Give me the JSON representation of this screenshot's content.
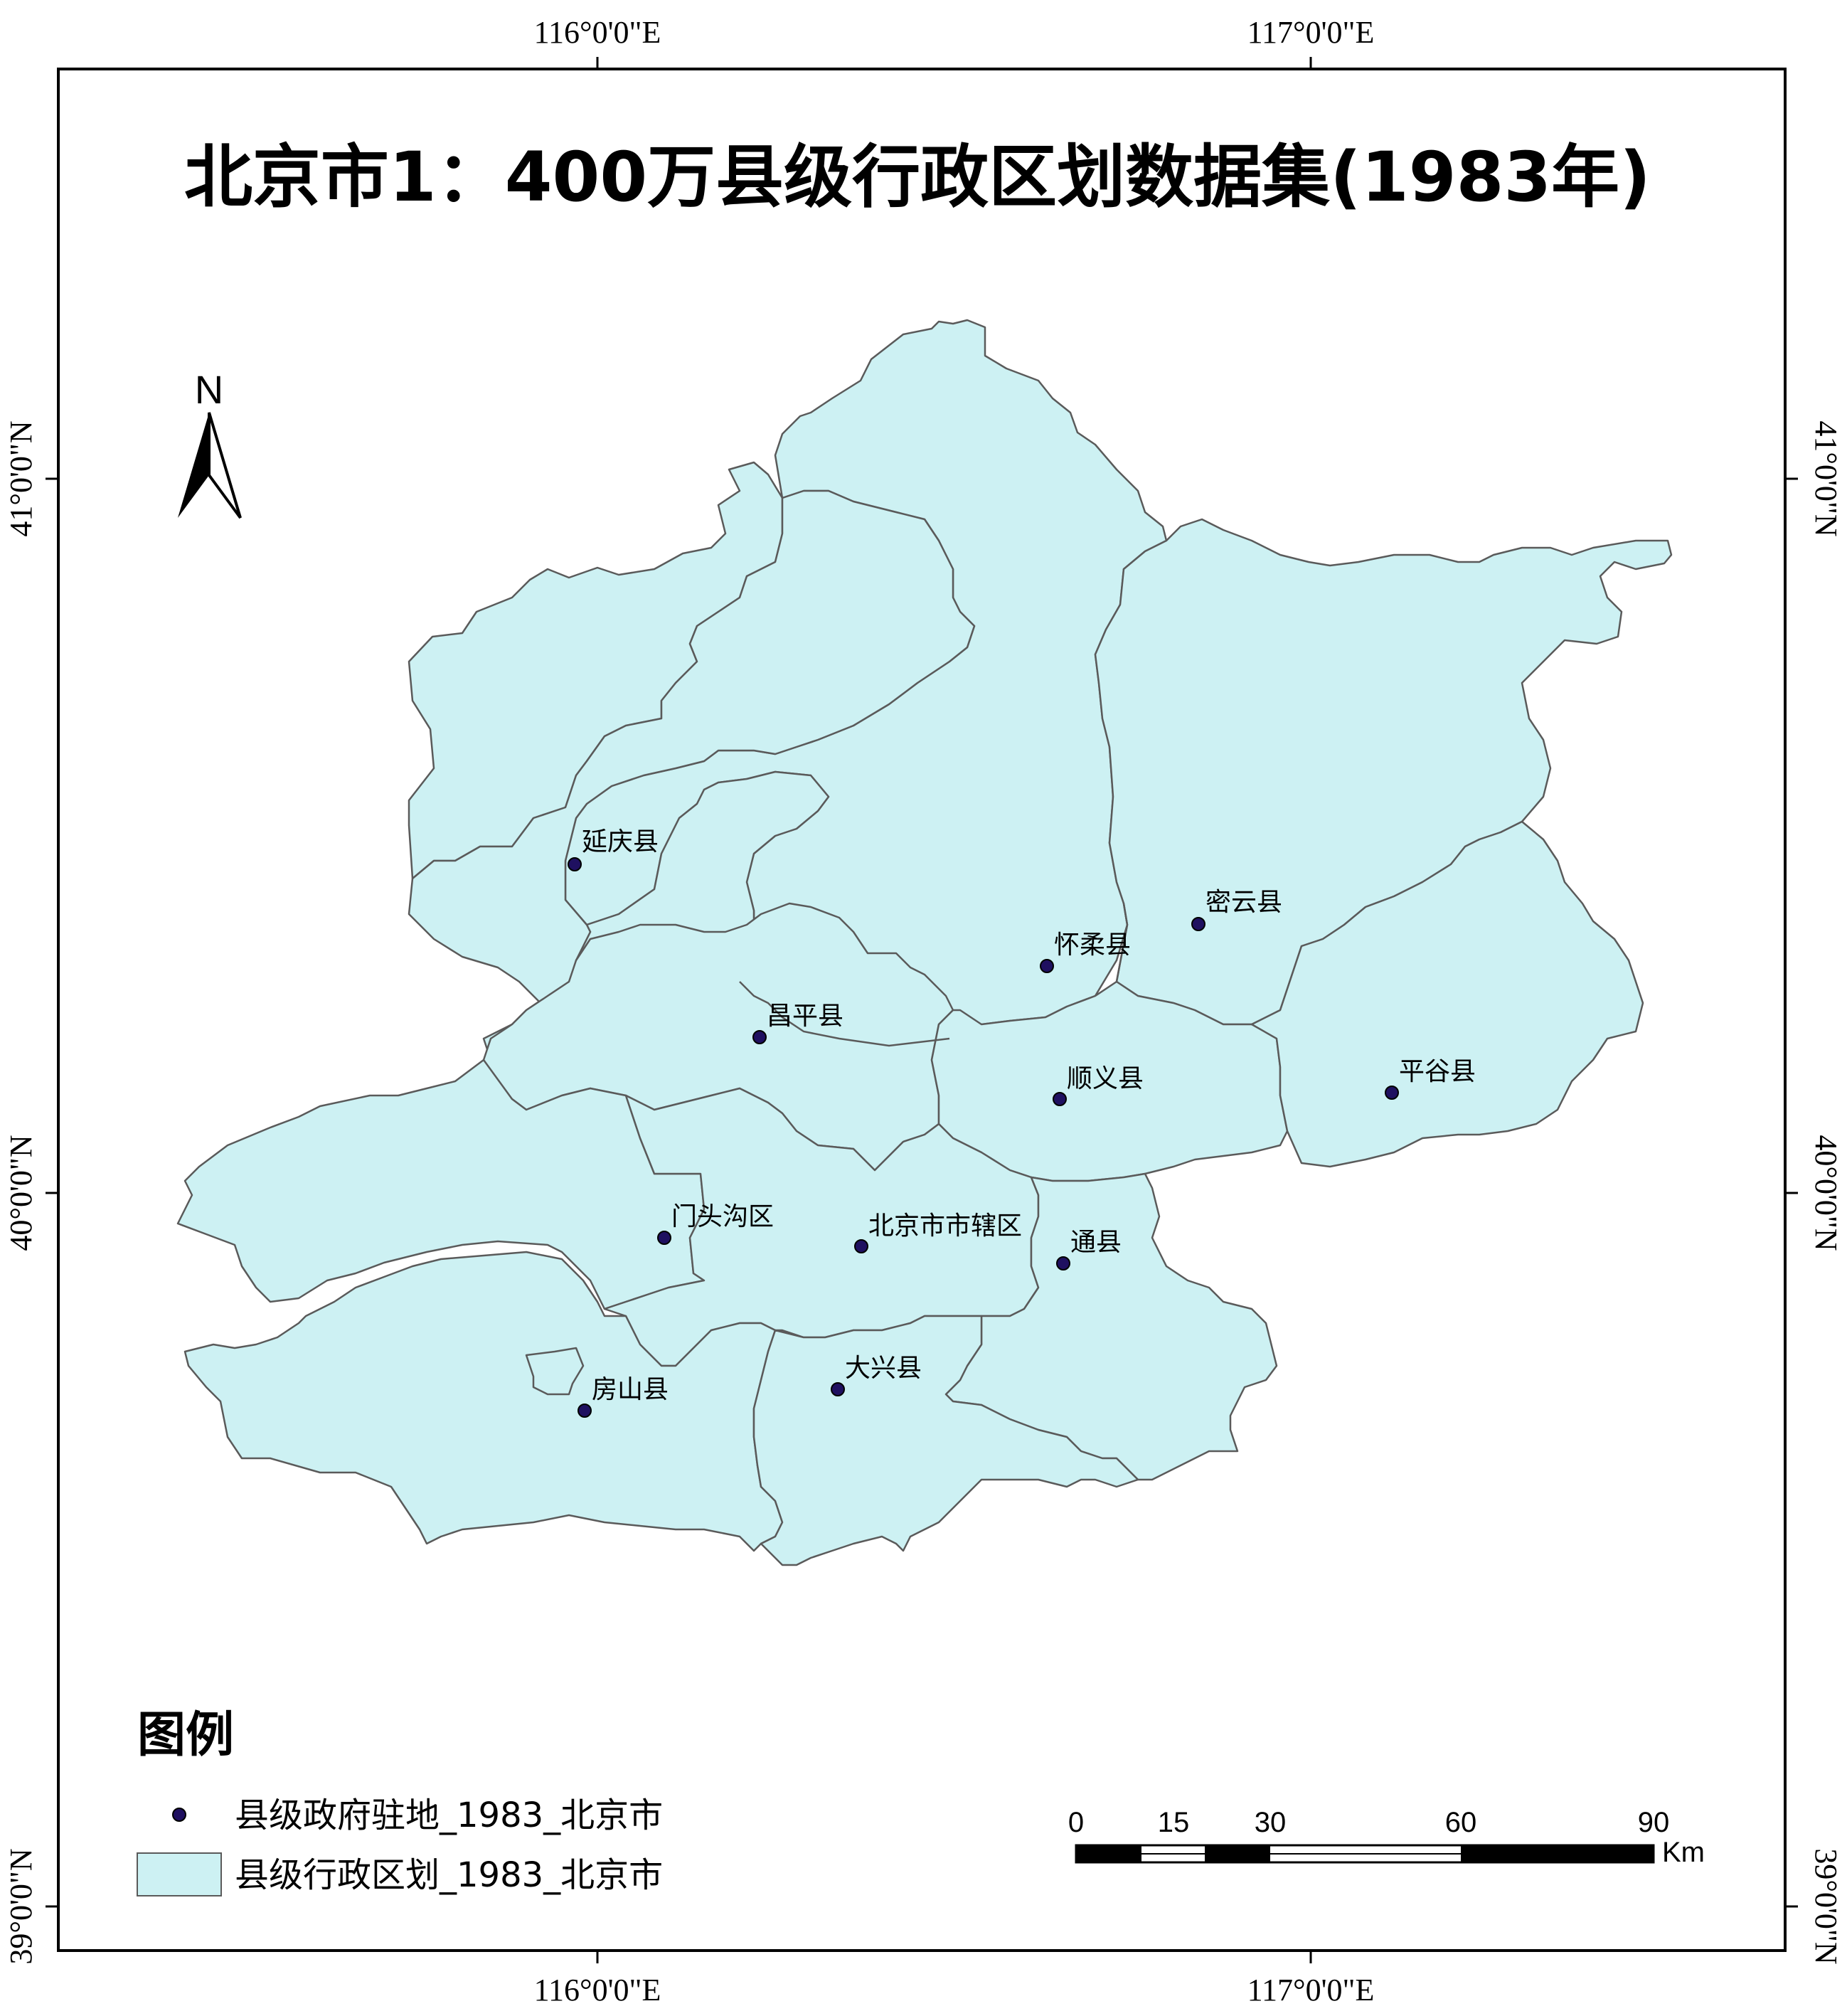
{
  "title": "北京市1：400万县级行政区划数据集(1983年)",
  "graticule": {
    "longitude_labels": [
      "116°0'0\"E",
      "117°0'0\"E"
    ],
    "latitude_labels": [
      "41°0'0\"N",
      "40°0'0\"N",
      "39°0'0\"N"
    ]
  },
  "north_arrow": {
    "label": "N"
  },
  "counties": [
    {
      "name": "延庆县"
    },
    {
      "name": "怀柔县"
    },
    {
      "name": "密云县"
    },
    {
      "name": "昌平县"
    },
    {
      "name": "顺义县"
    },
    {
      "name": "平谷县"
    },
    {
      "name": "门头沟区"
    },
    {
      "name": "北京市市辖区"
    },
    {
      "name": "通县"
    },
    {
      "name": "房山县"
    },
    {
      "name": "大兴县"
    }
  ],
  "legend": {
    "title": "图例",
    "items": [
      {
        "label": "县级政府驻地_1983_北京市",
        "symbol": "point"
      },
      {
        "label": "县级行政区划_1983_北京市",
        "symbol": "polygon"
      }
    ]
  },
  "scale_bar": {
    "ticks": [
      "0",
      "15",
      "30",
      "60",
      "90"
    ],
    "unit": "Km"
  },
  "colors": {
    "region_fill": "#cdf1f3",
    "boundary": "#5a5a5a",
    "point_fill": "#1f1060",
    "frame": "#000000"
  }
}
